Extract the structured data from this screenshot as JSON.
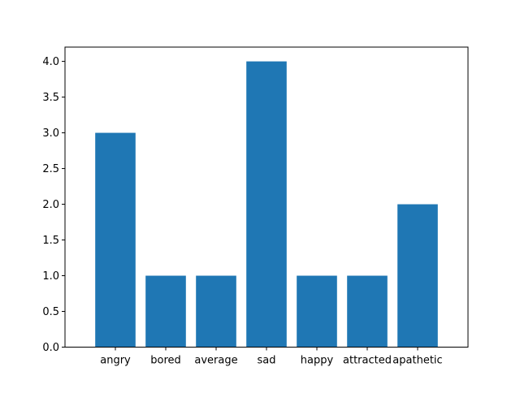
{
  "chart_data": {
    "type": "bar",
    "title": "",
    "xlabel": "",
    "ylabel": "",
    "categories": [
      "angry",
      "bored",
      "average",
      "sad",
      "happy",
      "attracted",
      "apathetic"
    ],
    "values": [
      3,
      1,
      1,
      4,
      1,
      1,
      2
    ],
    "ylim": [
      0,
      4.2
    ],
    "yticks": [
      "0.0",
      "0.5",
      "1.0",
      "1.5",
      "2.0",
      "2.5",
      "3.0",
      "3.5",
      "4.0"
    ],
    "grid": false,
    "bar_color": "#1f77b4"
  }
}
